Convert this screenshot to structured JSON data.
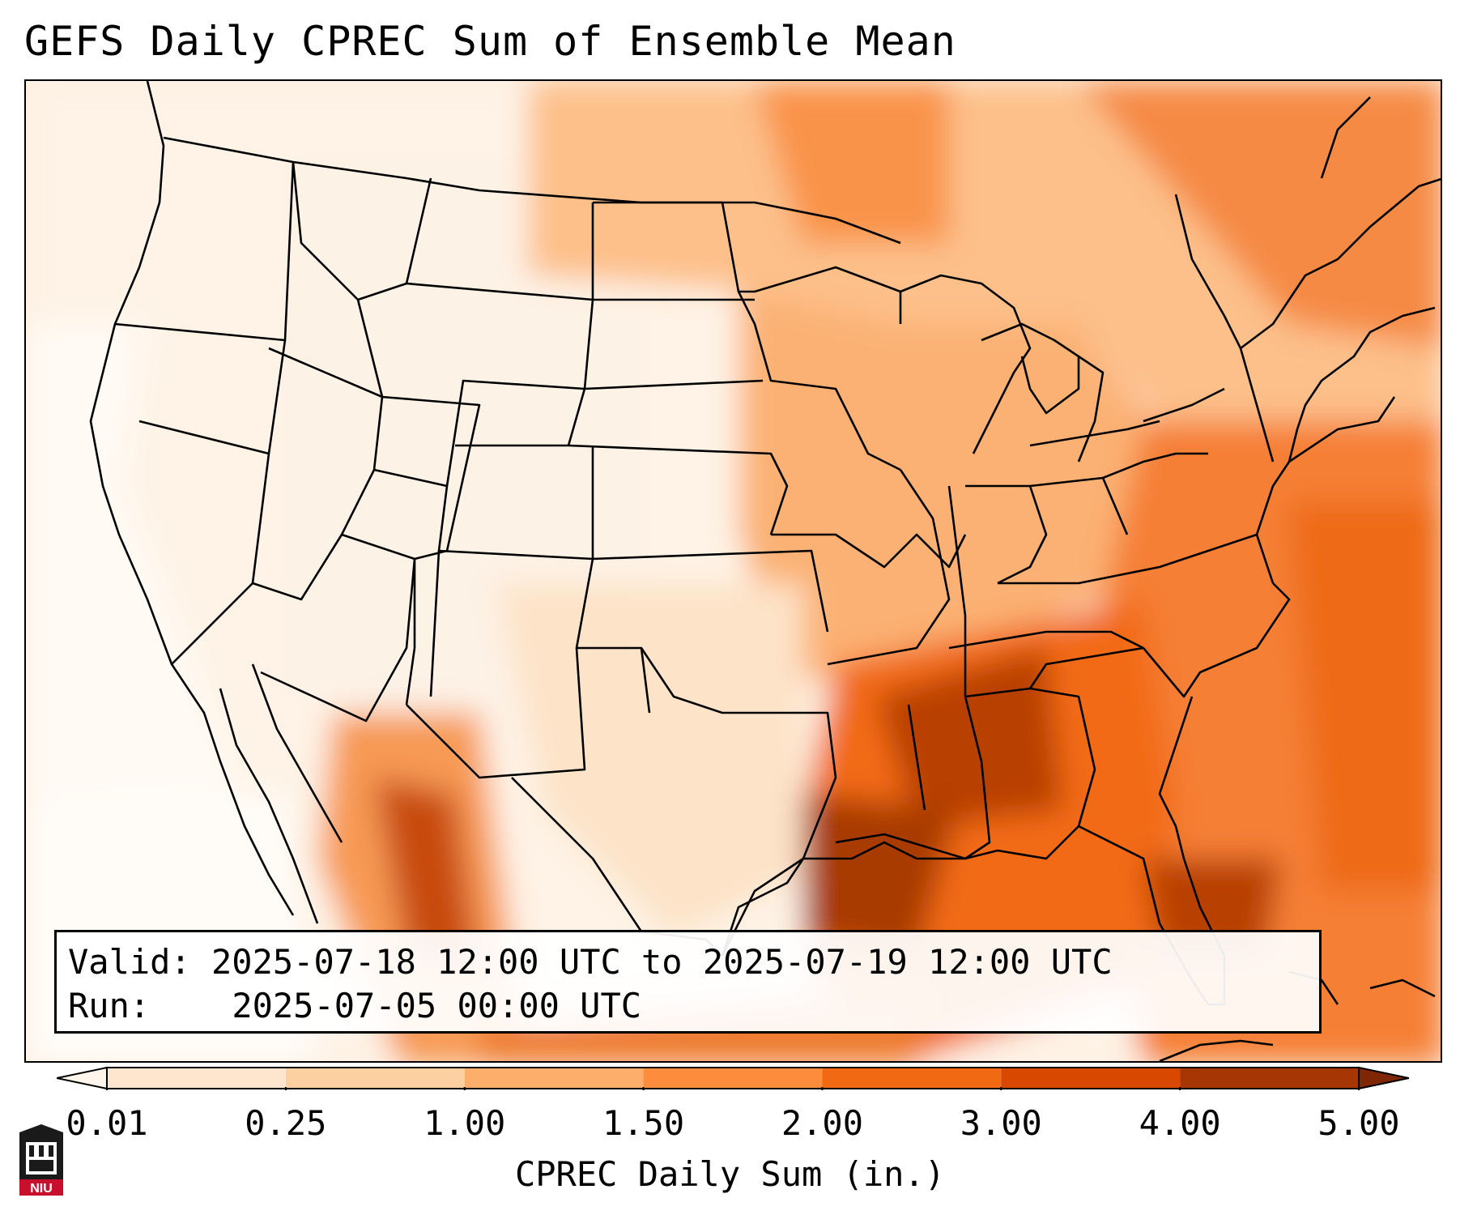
{
  "title": "GEFS Daily CPREC Sum of Ensemble Mean",
  "info": {
    "valid_label": "Valid:",
    "valid_value": "2025-07-18 12:00 UTC to 2025-07-19 12:00 UTC",
    "run_label": "Run:",
    "run_value": "2025-07-05 00:00 UTC"
  },
  "colorbar": {
    "label": "CPREC Daily Sum (in.)",
    "ticks": [
      "0.01",
      "0.25",
      "1.00",
      "1.50",
      "2.00",
      "3.00",
      "4.00",
      "5.00"
    ],
    "colors": [
      "#fff5eb",
      "#fee6ce",
      "#fdd0a2",
      "#fdae6b",
      "#fd8d3c",
      "#f16913",
      "#d94801",
      "#a63603",
      "#7f2704"
    ]
  },
  "logo": {
    "text": "NIU"
  }
}
